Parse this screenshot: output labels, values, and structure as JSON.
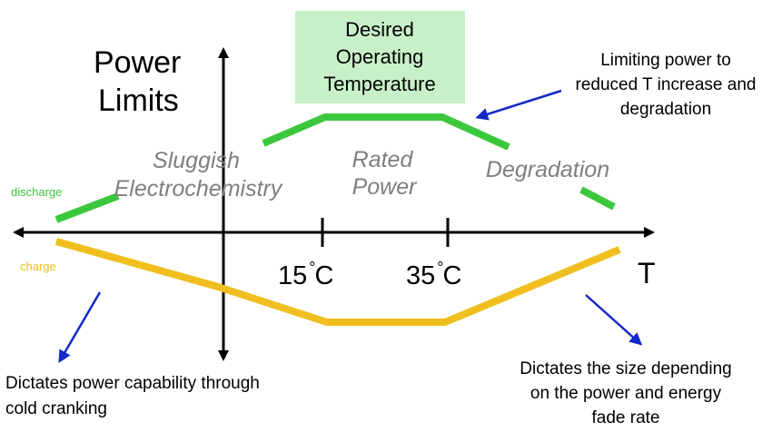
{
  "title": {
    "line1": "Power",
    "line2": "Limits"
  },
  "x_axis_label": "T",
  "ticks": [
    {
      "number": "15",
      "unit": "C"
    },
    {
      "number": "35",
      "unit": "C"
    }
  ],
  "legend": {
    "discharge": "discharge",
    "charge": "charge"
  },
  "regions": {
    "sluggish_line1": "Sluggish",
    "sluggish_line2": "Electrochemistry",
    "rated_line1": "Rated",
    "rated_line2": "Power",
    "degradation": "Degradation"
  },
  "desired_box": {
    "line1": "Desired",
    "line2": "Operating",
    "line3": "Temperature"
  },
  "annotations": {
    "top_right": [
      "Limiting power to",
      "reduced T increase and",
      "degradation"
    ],
    "bottom_left": [
      "Dictates power capability through",
      "cold cranking"
    ],
    "bottom_right": [
      "Dictates the size depending",
      "on the power and energy",
      "fade rate"
    ]
  },
  "colors": {
    "discharge": "#3cc83c",
    "charge": "#f0be1e",
    "box_fill": "#c8f0c8",
    "arrow_blue": "#1428c8",
    "region_text": "#7f7f7f",
    "axis": "#000000"
  }
}
